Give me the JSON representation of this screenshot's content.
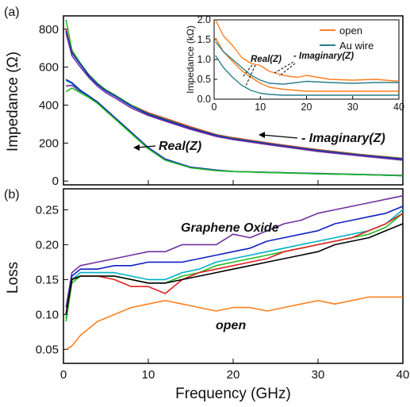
{
  "xlabel": "Frequency (GHz)",
  "x_ticks": [
    "0",
    "10",
    "20",
    "30",
    "40"
  ],
  "panel_a": {
    "label": "(a)",
    "ylabel": "Impedance (Ω)",
    "y_ticks": [
      "0",
      "200",
      "400",
      "600",
      "800"
    ],
    "annotation_real": "Real(Z)",
    "annotation_imag": "- Imaginary(Z)"
  },
  "inset": {
    "ylabel": "Impedance (kΩ)",
    "y_ticks": [
      "0.0",
      "0.5",
      "1.0",
      "1.5",
      "2.0"
    ],
    "x_ticks": [
      "0",
      "10",
      "20",
      "30",
      "40"
    ],
    "annotation_real": "Real(Z)",
    "annotation_imag": "- Imaginary(Z)",
    "legend": [
      {
        "label": "open",
        "color": "#ff7f1e"
      },
      {
        "label": "Au wire",
        "color": "#2a7f8c"
      }
    ]
  },
  "panel_b": {
    "label": "(b)",
    "ylabel": "Loss",
    "y_ticks": [
      "0.05",
      "0.10",
      "0.15",
      "0.20",
      "0.25"
    ],
    "annotation_go": "Graphene Oxide",
    "annotation_open": "open"
  },
  "chart_data": [
    {
      "type": "line",
      "panel": "a",
      "xlabel": "Frequency (GHz)",
      "ylabel": "Impedance (Ω)",
      "xlim": [
        0,
        40
      ],
      "ylim": [
        -20,
        870
      ],
      "series": [
        {
          "color": "#7030a0",
          "x": [
            0.3,
            1,
            2,
            3,
            4,
            5,
            6,
            8,
            10,
            12,
            15,
            18,
            20,
            25,
            30,
            35,
            40
          ],
          "y": [
            500,
            505,
            470,
            440,
            410,
            370,
            330,
            250,
            170,
            110,
            70,
            55,
            50,
            45,
            40,
            35,
            30
          ]
        },
        {
          "color": "#00b0c8",
          "x": [
            0.3,
            1,
            2,
            3,
            4,
            5,
            6,
            8,
            10,
            12,
            15,
            18,
            20,
            25,
            30,
            35,
            40
          ],
          "y": [
            530,
            515,
            475,
            445,
            415,
            375,
            335,
            255,
            175,
            115,
            72,
            57,
            50,
            44,
            38,
            34,
            28
          ]
        },
        {
          "color": "#1020c0",
          "x": [
            0.3,
            1,
            2,
            3,
            4,
            5,
            6,
            8,
            10,
            12,
            15,
            18,
            20,
            25,
            30,
            35,
            40
          ],
          "y": [
            535,
            518,
            478,
            448,
            417,
            377,
            337,
            257,
            176,
            116,
            73,
            58,
            51,
            45,
            39,
            34,
            28
          ]
        },
        {
          "color": "#20c020",
          "x": [
            0.3,
            1,
            2,
            3,
            4,
            5,
            6,
            8,
            10,
            12,
            15,
            18,
            20,
            25,
            30,
            35,
            40
          ],
          "y": [
            470,
            490,
            465,
            440,
            410,
            370,
            330,
            250,
            170,
            110,
            70,
            55,
            50,
            44,
            38,
            34,
            28
          ]
        },
        {
          "color": "#e02020",
          "x": [
            0.3,
            1,
            2,
            3,
            4,
            5,
            6,
            8,
            10,
            12,
            15,
            18,
            20,
            25,
            30,
            35,
            40
          ],
          "y": [
            800,
            680,
            620,
            560,
            515,
            480,
            455,
            400,
            360,
            330,
            285,
            245,
            228,
            195,
            165,
            140,
            120
          ]
        },
        {
          "color": "#20c020",
          "x": [
            0.3,
            1,
            2,
            3,
            4,
            5,
            6,
            8,
            10,
            12,
            15,
            18,
            20,
            25,
            30,
            35,
            40
          ],
          "y": [
            850,
            690,
            620,
            560,
            515,
            480,
            455,
            400,
            355,
            325,
            280,
            242,
            225,
            192,
            162,
            138,
            118
          ]
        },
        {
          "color": "#1020c0",
          "x": [
            0.3,
            1,
            2,
            3,
            4,
            5,
            6,
            8,
            10,
            12,
            15,
            18,
            20,
            25,
            30,
            35,
            40
          ],
          "y": [
            790,
            675,
            615,
            555,
            510,
            475,
            450,
            395,
            352,
            322,
            278,
            240,
            222,
            190,
            160,
            136,
            116
          ]
        },
        {
          "color": "#7030a0",
          "x": [
            0.3,
            1,
            2,
            3,
            4,
            5,
            6,
            8,
            10,
            12,
            15,
            18,
            20,
            25,
            30,
            35,
            40
          ],
          "y": [
            780,
            660,
            600,
            545,
            500,
            465,
            440,
            385,
            345,
            315,
            272,
            235,
            218,
            186,
            156,
            132,
            110
          ]
        }
      ]
    },
    {
      "type": "line",
      "panel": "inset",
      "ylabel": "Impedance (kΩ)",
      "xlim": [
        0,
        40
      ],
      "ylim": [
        0,
        2.0
      ],
      "series": [
        {
          "name": "open",
          "color": "#ff7f1e",
          "x": [
            0.3,
            2,
            4,
            6,
            8,
            10,
            12,
            15,
            18,
            20,
            25,
            30,
            35,
            40
          ],
          "y": [
            2.0,
            1.6,
            1.35,
            1.05,
            0.9,
            0.85,
            0.7,
            0.6,
            0.55,
            0.6,
            0.5,
            0.48,
            0.5,
            0.45
          ]
        },
        {
          "name": "open",
          "color": "#ff7f1e",
          "x": [
            0.3,
            2,
            4,
            6,
            8,
            10,
            12,
            15,
            18,
            20,
            25,
            30,
            35,
            40
          ],
          "y": [
            1.55,
            1.2,
            0.95,
            0.72,
            0.55,
            0.4,
            0.3,
            0.25,
            0.22,
            0.2,
            0.2,
            0.2,
            0.2,
            0.2
          ]
        },
        {
          "name": "Au wire",
          "color": "#2a7f8c",
          "x": [
            0.3,
            2,
            4,
            6,
            8,
            10,
            12,
            15,
            18,
            20,
            25,
            30,
            35,
            40
          ],
          "y": [
            1.45,
            1.2,
            1.0,
            0.8,
            0.6,
            0.48,
            0.4,
            0.38,
            0.42,
            0.45,
            0.42,
            0.4,
            0.42,
            0.42
          ]
        },
        {
          "name": "Au wire",
          "color": "#2a7f8c",
          "x": [
            0.3,
            2,
            4,
            6,
            8,
            10,
            12,
            15,
            18,
            20,
            25,
            30,
            35,
            40
          ],
          "y": [
            1.1,
            0.8,
            0.55,
            0.35,
            0.22,
            0.15,
            0.12,
            0.1,
            0.1,
            0.1,
            0.1,
            0.1,
            0.1,
            0.1
          ]
        }
      ]
    },
    {
      "type": "line",
      "panel": "b",
      "xlabel": "Frequency (GHz)",
      "ylabel": "Loss",
      "xlim": [
        0,
        40
      ],
      "ylim": [
        0.03,
        0.28
      ],
      "series": [
        {
          "color": "#7030a0",
          "x": [
            0.3,
            1,
            2,
            4,
            6,
            8,
            10,
            12,
            14,
            16,
            18,
            20,
            22,
            24,
            26,
            28,
            30,
            32,
            34,
            36,
            38,
            40
          ],
          "y": [
            0.11,
            0.16,
            0.17,
            0.175,
            0.18,
            0.185,
            0.19,
            0.19,
            0.2,
            0.2,
            0.2,
            0.215,
            0.21,
            0.22,
            0.23,
            0.235,
            0.245,
            0.25,
            0.255,
            0.26,
            0.265,
            0.27
          ]
        },
        {
          "color": "#1020c0",
          "x": [
            0.3,
            1,
            2,
            4,
            6,
            8,
            10,
            12,
            14,
            16,
            18,
            20,
            22,
            24,
            26,
            28,
            30,
            32,
            34,
            36,
            38,
            40
          ],
          "y": [
            0.1,
            0.155,
            0.165,
            0.165,
            0.17,
            0.17,
            0.175,
            0.175,
            0.175,
            0.18,
            0.185,
            0.19,
            0.195,
            0.205,
            0.21,
            0.215,
            0.22,
            0.23,
            0.235,
            0.24,
            0.245,
            0.255
          ]
        },
        {
          "color": "#00b0c8",
          "x": [
            0.3,
            1,
            2,
            4,
            6,
            8,
            10,
            12,
            14,
            16,
            18,
            20,
            22,
            24,
            26,
            28,
            30,
            32,
            34,
            36,
            38,
            40
          ],
          "y": [
            0.095,
            0.15,
            0.16,
            0.16,
            0.16,
            0.155,
            0.15,
            0.15,
            0.16,
            0.165,
            0.175,
            0.18,
            0.185,
            0.19,
            0.195,
            0.2,
            0.205,
            0.21,
            0.215,
            0.22,
            0.23,
            0.25
          ]
        },
        {
          "color": "#20c020",
          "x": [
            0.3,
            1,
            2,
            4,
            6,
            8,
            10,
            12,
            14,
            16,
            18,
            20,
            22,
            24,
            26,
            28,
            30,
            32,
            34,
            36,
            38,
            40
          ],
          "y": [
            0.09,
            0.145,
            0.155,
            0.155,
            0.155,
            0.15,
            0.145,
            0.145,
            0.155,
            0.16,
            0.17,
            0.175,
            0.18,
            0.185,
            0.19,
            0.195,
            0.2,
            0.205,
            0.21,
            0.215,
            0.225,
            0.245
          ]
        },
        {
          "color": "#e02020",
          "x": [
            0.3,
            1,
            2,
            4,
            6,
            8,
            10,
            12,
            14,
            16,
            18,
            20,
            22,
            24,
            26,
            28,
            30,
            32,
            34,
            36,
            38,
            40
          ],
          "y": [
            0.1,
            0.15,
            0.155,
            0.155,
            0.15,
            0.14,
            0.14,
            0.13,
            0.15,
            0.16,
            0.165,
            0.17,
            0.175,
            0.18,
            0.19,
            0.195,
            0.2,
            0.205,
            0.21,
            0.22,
            0.23,
            0.245
          ]
        },
        {
          "color": "#000000",
          "x": [
            0.3,
            1,
            2,
            4,
            6,
            8,
            10,
            12,
            14,
            16,
            18,
            20,
            22,
            24,
            26,
            28,
            30,
            32,
            34,
            36,
            38,
            40
          ],
          "y": [
            0.1,
            0.15,
            0.155,
            0.155,
            0.155,
            0.15,
            0.145,
            0.145,
            0.15,
            0.155,
            0.16,
            0.165,
            0.17,
            0.175,
            0.18,
            0.185,
            0.19,
            0.2,
            0.205,
            0.21,
            0.22,
            0.23
          ]
        },
        {
          "color": "#ff7f1e",
          "x": [
            0.3,
            1,
            2,
            4,
            6,
            8,
            10,
            12,
            14,
            16,
            18,
            20,
            22,
            24,
            26,
            28,
            30,
            32,
            34,
            36,
            38,
            40
          ],
          "y": [
            0.05,
            0.055,
            0.07,
            0.09,
            0.1,
            0.11,
            0.115,
            0.12,
            0.115,
            0.11,
            0.105,
            0.11,
            0.11,
            0.105,
            0.11,
            0.115,
            0.12,
            0.115,
            0.12,
            0.125,
            0.125,
            0.125
          ]
        }
      ]
    }
  ]
}
